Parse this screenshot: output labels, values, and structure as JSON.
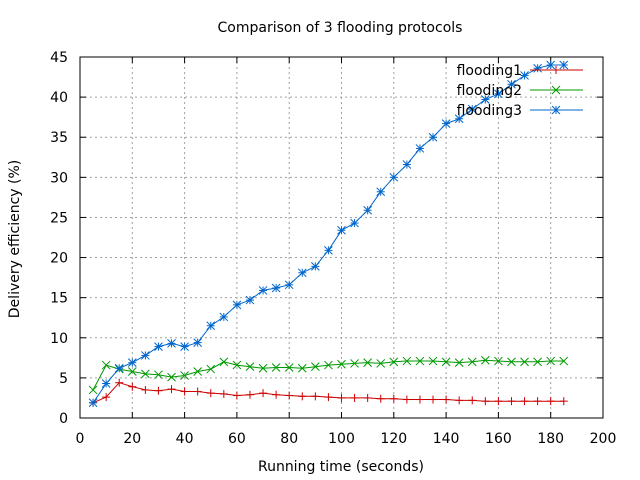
{
  "chart_data": {
    "type": "line",
    "title": "Comparison of 3 flooding protocols",
    "xlabel": "Running time (seconds)",
    "ylabel": "Delivery efficiency (%)",
    "xlim": [
      0,
      200
    ],
    "ylim": [
      0,
      45
    ],
    "xticks": [
      0,
      20,
      40,
      60,
      80,
      100,
      120,
      140,
      160,
      180,
      200
    ],
    "yticks": [
      0,
      5,
      10,
      15,
      20,
      25,
      30,
      35,
      40,
      45
    ],
    "grid": true,
    "legend_position": "top-right",
    "x": [
      5,
      10,
      15,
      20,
      25,
      30,
      35,
      40,
      45,
      50,
      55,
      60,
      65,
      70,
      75,
      80,
      85,
      90,
      95,
      100,
      105,
      110,
      115,
      120,
      125,
      130,
      135,
      140,
      145,
      150,
      155,
      160,
      165,
      170,
      175,
      180,
      185
    ],
    "series": [
      {
        "name": "flooding1",
        "color": "#cc0000",
        "marker": "plus",
        "values": [
          1.9,
          2.6,
          4.4,
          3.9,
          3.5,
          3.4,
          3.6,
          3.3,
          3.3,
          3.1,
          3.0,
          2.8,
          2.9,
          3.1,
          2.9,
          2.8,
          2.7,
          2.7,
          2.6,
          2.5,
          2.5,
          2.5,
          2.4,
          2.4,
          2.3,
          2.3,
          2.3,
          2.3,
          2.2,
          2.2,
          2.1,
          2.1,
          2.1,
          2.1,
          2.1,
          2.1,
          2.1
        ]
      },
      {
        "name": "flooding2",
        "color": "#009900",
        "marker": "x",
        "values": [
          3.5,
          6.6,
          6.1,
          5.8,
          5.5,
          5.4,
          5.1,
          5.3,
          5.8,
          6.1,
          7.0,
          6.6,
          6.4,
          6.2,
          6.3,
          6.3,
          6.2,
          6.4,
          6.6,
          6.7,
          6.8,
          6.9,
          6.8,
          7.0,
          7.1,
          7.1,
          7.1,
          7.0,
          6.9,
          7.0,
          7.2,
          7.1,
          7.0,
          7.0,
          7.0,
          7.1,
          7.1
        ]
      },
      {
        "name": "flooding3",
        "color": "#0066cc",
        "marker": "star",
        "values": [
          1.9,
          4.3,
          6.2,
          6.9,
          7.8,
          8.9,
          9.3,
          8.9,
          9.4,
          11.5,
          12.6,
          14.1,
          14.7,
          15.9,
          16.2,
          16.6,
          18.1,
          18.9,
          20.9,
          23.4,
          24.3,
          25.9,
          28.2,
          30.0,
          31.6,
          33.6,
          35.0,
          36.7,
          37.3,
          38.5,
          39.7,
          40.4,
          41.6,
          42.7,
          43.6,
          44.0,
          44.0
        ]
      }
    ]
  }
}
